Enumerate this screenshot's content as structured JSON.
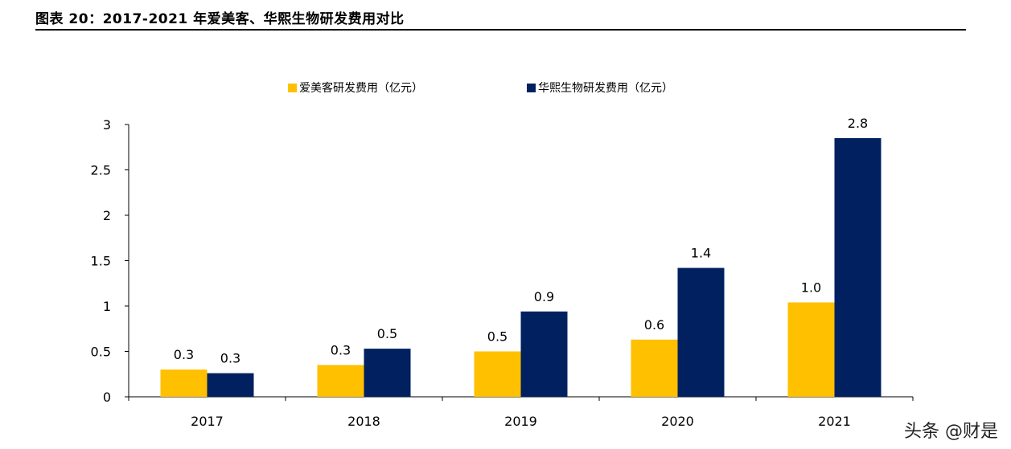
{
  "header": {
    "title": "图表 20：2017-2021 年爱美客、华熙生物研发费用对比"
  },
  "watermark": "头条 @财是",
  "chart_data": {
    "type": "bar",
    "title": "",
    "xlabel": "",
    "ylabel": "",
    "categories": [
      "2017",
      "2018",
      "2019",
      "2020",
      "2021"
    ],
    "ylim": [
      0,
      3
    ],
    "yticks": [
      0,
      0.5,
      1,
      1.5,
      2,
      2.5,
      3
    ],
    "ytick_labels": [
      "0",
      "0.5",
      "1",
      "1.5",
      "2",
      "2.5",
      "3"
    ],
    "grid": false,
    "legend_position": "top",
    "series": [
      {
        "name": "爱美客研发费用（亿元）",
        "color": "#FFC000",
        "values": [
          0.3,
          0.35,
          0.5,
          0.63,
          1.04
        ],
        "labels": [
          "0.3",
          "0.3",
          "0.5",
          "0.6",
          "1.0"
        ]
      },
      {
        "name": "华熙生物研发费用（亿元）",
        "color": "#002060",
        "values": [
          0.26,
          0.53,
          0.94,
          1.42,
          2.85
        ],
        "labels": [
          "0.3",
          "0.5",
          "0.9",
          "1.4",
          "2.8"
        ]
      }
    ]
  }
}
